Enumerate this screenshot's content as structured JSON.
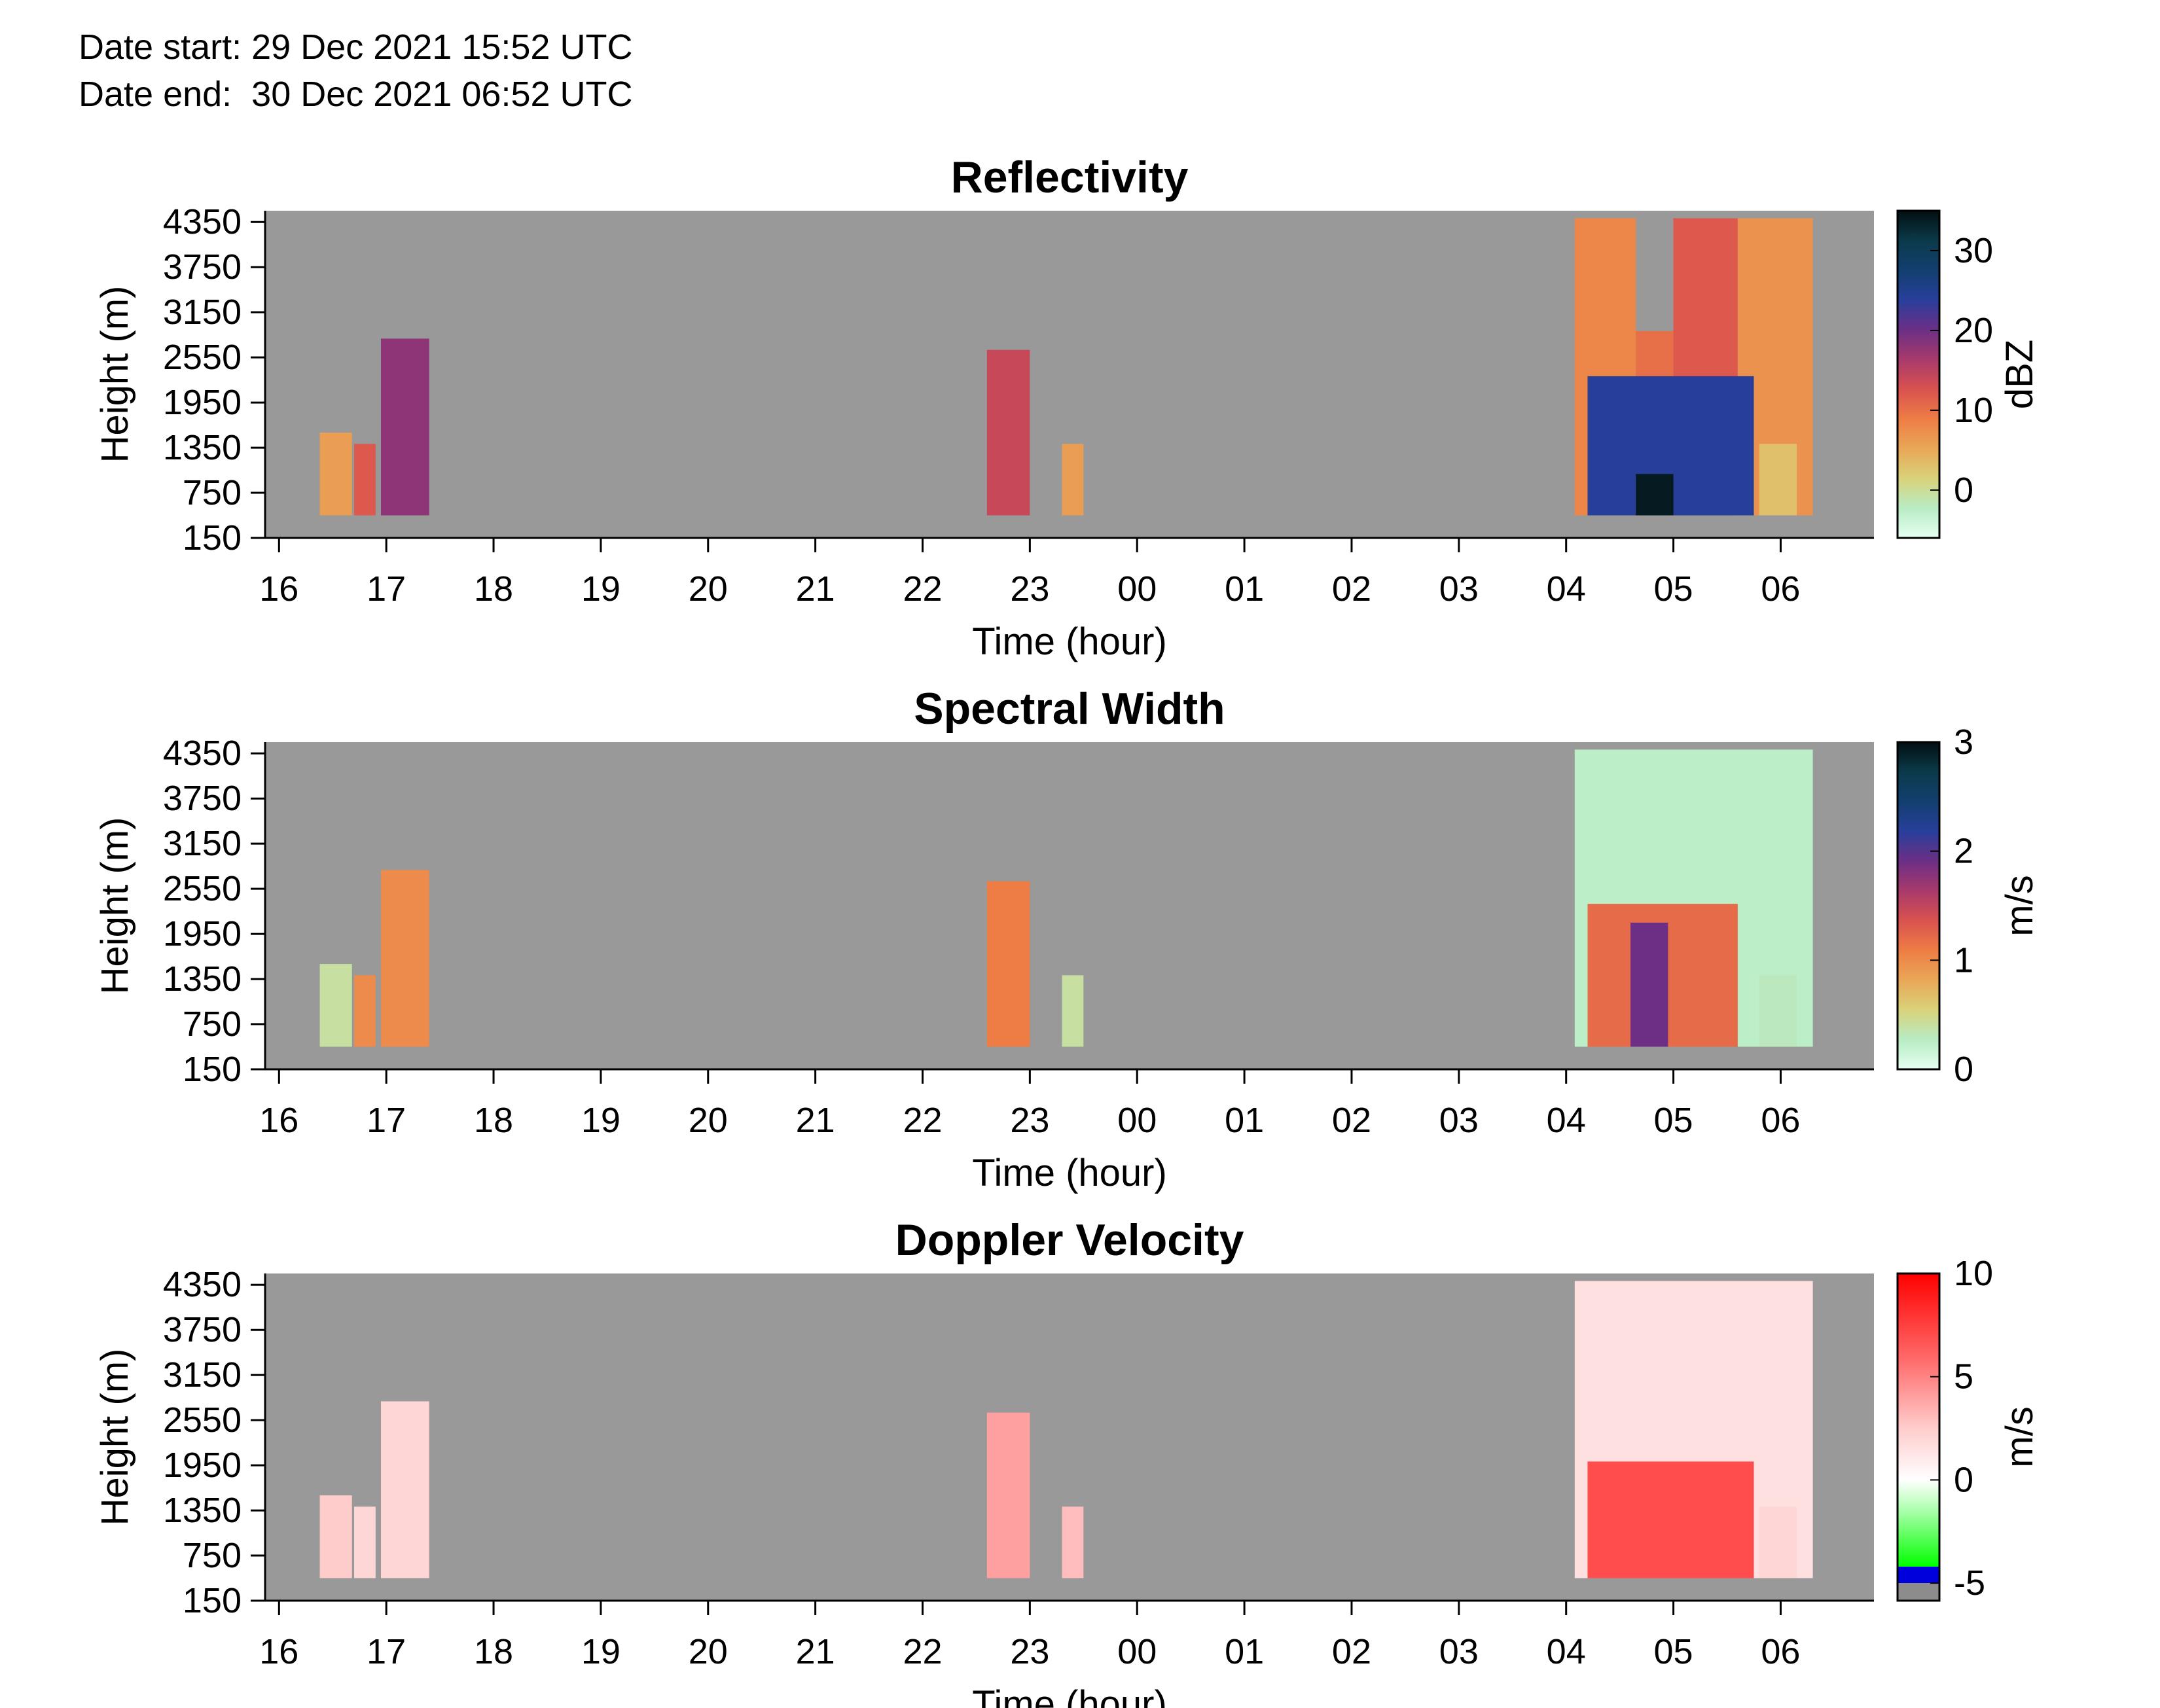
{
  "header": {
    "date_start": "Date start: 29 Dec 2021 15:52 UTC",
    "date_end": "Date end:  30 Dec 2021 06:52 UTC"
  },
  "colors": {
    "background_gray": "#999999",
    "reflectivity_colormap": [
      "#e6fff2",
      "#b8ecc4",
      "#d9d27a",
      "#e9a757",
      "#ee7d45",
      "#d9524f",
      "#a83a6b",
      "#6b2f86",
      "#283f9a",
      "#123f70",
      "#0b3a4a",
      "#030f12"
    ],
    "spectral_width_colormap": [
      "#e6fff2",
      "#b8ecc4",
      "#d9d27a",
      "#e9a757",
      "#ee7d45",
      "#d9524f",
      "#a83a6b",
      "#6b2f86",
      "#283f9a",
      "#123f70",
      "#0b3a4a",
      "#030f12"
    ],
    "doppler_colormap": [
      [
        "#8c8c8c",
        -5.85
      ],
      [
        "#8c8c8c",
        -5.0
      ],
      [
        "#0000dd",
        -5.0
      ],
      [
        "#0000dd",
        -4.2
      ],
      [
        "#00ff00",
        -4.2
      ],
      [
        "#aaffaa",
        -1.5
      ],
      [
        "#ffffff",
        0.0
      ],
      [
        "#ffcccc",
        2.5
      ],
      [
        "#ff6666",
        6.0
      ],
      [
        "#ff0000",
        10.0
      ]
    ]
  },
  "chart_data": [
    {
      "type": "heatmap",
      "title": "Reflectivity",
      "xlabel": "Time (hour)",
      "ylabel": "Height (m)",
      "colorbar_label": "dBZ",
      "x_ticks": [
        "16",
        "17",
        "18",
        "19",
        "20",
        "21",
        "22",
        "23",
        "00",
        "01",
        "02",
        "03",
        "04",
        "05",
        "06"
      ],
      "y_ticks": [
        "150",
        "750",
        "1350",
        "1950",
        "2550",
        "3150",
        "3750",
        "4350"
      ],
      "xlim": [
        15.87,
        30.87
      ],
      "ylim": [
        150,
        4500
      ],
      "clim": [
        -6,
        35
      ],
      "colorbar_ticks": [
        0,
        10,
        20,
        30
      ],
      "echo_regions": [
        {
          "t_start": 16.38,
          "t_end": 16.68,
          "h_top": 1550,
          "value": 6
        },
        {
          "t_start": 16.7,
          "t_end": 16.9,
          "h_top": 1400,
          "value": 12
        },
        {
          "t_start": 16.95,
          "t_end": 17.4,
          "h_top": 2800,
          "value": 18
        },
        {
          "t_start": 22.6,
          "t_end": 23.0,
          "h_top": 2650,
          "value": 14
        },
        {
          "t_start": 23.3,
          "t_end": 23.5,
          "h_top": 1400,
          "value": 6
        },
        {
          "t_start": 28.08,
          "t_end": 28.65,
          "h_top": 4400,
          "value": 8
        },
        {
          "t_start": 28.65,
          "t_end": 29.0,
          "h_top": 2900,
          "value": 10
        },
        {
          "t_start": 29.0,
          "t_end": 29.6,
          "h_top": 4400,
          "value": 12
        },
        {
          "t_start": 29.6,
          "t_end": 30.3,
          "h_top": 4400,
          "value": 7
        },
        {
          "t_start": 28.2,
          "t_end": 29.75,
          "h_top": 2300,
          "value": 24
        },
        {
          "t_start": 28.65,
          "t_end": 29.0,
          "h_top": 1000,
          "value": 34
        },
        {
          "t_start": 29.8,
          "t_end": 30.15,
          "h_top": 1400,
          "value": 3
        }
      ]
    },
    {
      "type": "heatmap",
      "title": "Spectral Width",
      "xlabel": "Time (hour)",
      "ylabel": "Height (m)",
      "colorbar_label": "m/s",
      "x_ticks": [
        "16",
        "17",
        "18",
        "19",
        "20",
        "21",
        "22",
        "23",
        "00",
        "01",
        "02",
        "03",
        "04",
        "05",
        "06"
      ],
      "y_ticks": [
        "150",
        "750",
        "1350",
        "1950",
        "2550",
        "3150",
        "3750",
        "4350"
      ],
      "xlim": [
        15.87,
        30.87
      ],
      "ylim": [
        150,
        4500
      ],
      "clim": [
        0,
        3
      ],
      "colorbar_ticks": [
        0,
        1,
        2,
        3
      ],
      "echo_regions": [
        {
          "t_start": 16.38,
          "t_end": 16.68,
          "h_top": 1550,
          "value": 0.4
        },
        {
          "t_start": 16.7,
          "t_end": 16.9,
          "h_top": 1400,
          "value": 1.0
        },
        {
          "t_start": 16.95,
          "t_end": 17.4,
          "h_top": 2800,
          "value": 1.0
        },
        {
          "t_start": 22.6,
          "t_end": 23.0,
          "h_top": 2650,
          "value": 1.1
        },
        {
          "t_start": 23.3,
          "t_end": 23.5,
          "h_top": 1400,
          "value": 0.4
        },
        {
          "t_start": 28.08,
          "t_end": 30.3,
          "h_top": 4400,
          "value": 0.25
        },
        {
          "t_start": 28.2,
          "t_end": 29.6,
          "h_top": 2350,
          "value": 1.2
        },
        {
          "t_start": 28.6,
          "t_end": 28.95,
          "h_top": 2100,
          "value": 1.9
        },
        {
          "t_start": 29.8,
          "t_end": 30.15,
          "h_top": 1400,
          "value": 0.3
        }
      ]
    },
    {
      "type": "heatmap",
      "title": "Doppler Velocity",
      "xlabel": "Time (hour)",
      "ylabel": "Height (m)",
      "colorbar_label": "m/s",
      "x_ticks": [
        "16",
        "17",
        "18",
        "19",
        "20",
        "21",
        "22",
        "23",
        "00",
        "01",
        "02",
        "03",
        "04",
        "05",
        "06"
      ],
      "y_ticks": [
        "150",
        "750",
        "1350",
        "1950",
        "2550",
        "3150",
        "3750",
        "4350"
      ],
      "xlim": [
        15.87,
        30.87
      ],
      "ylim": [
        150,
        4500
      ],
      "clim": [
        -5.85,
        10
      ],
      "colorbar_ticks": [
        -5,
        0,
        5,
        10
      ],
      "echo_regions": [
        {
          "t_start": 16.38,
          "t_end": 16.68,
          "h_top": 1550,
          "value": 2.5
        },
        {
          "t_start": 16.7,
          "t_end": 16.9,
          "h_top": 1400,
          "value": 2.0
        },
        {
          "t_start": 16.95,
          "t_end": 17.4,
          "h_top": 2800,
          "value": 2.0
        },
        {
          "t_start": 22.6,
          "t_end": 23.0,
          "h_top": 2650,
          "value": 4.0
        },
        {
          "t_start": 23.3,
          "t_end": 23.5,
          "h_top": 1400,
          "value": 3.0
        },
        {
          "t_start": 28.08,
          "t_end": 30.3,
          "h_top": 4400,
          "value": 1.5
        },
        {
          "t_start": 28.2,
          "t_end": 29.75,
          "h_top": 2000,
          "value": 7.0
        },
        {
          "t_start": 29.8,
          "t_end": 30.15,
          "h_top": 1400,
          "value": 2.0
        }
      ]
    }
  ]
}
